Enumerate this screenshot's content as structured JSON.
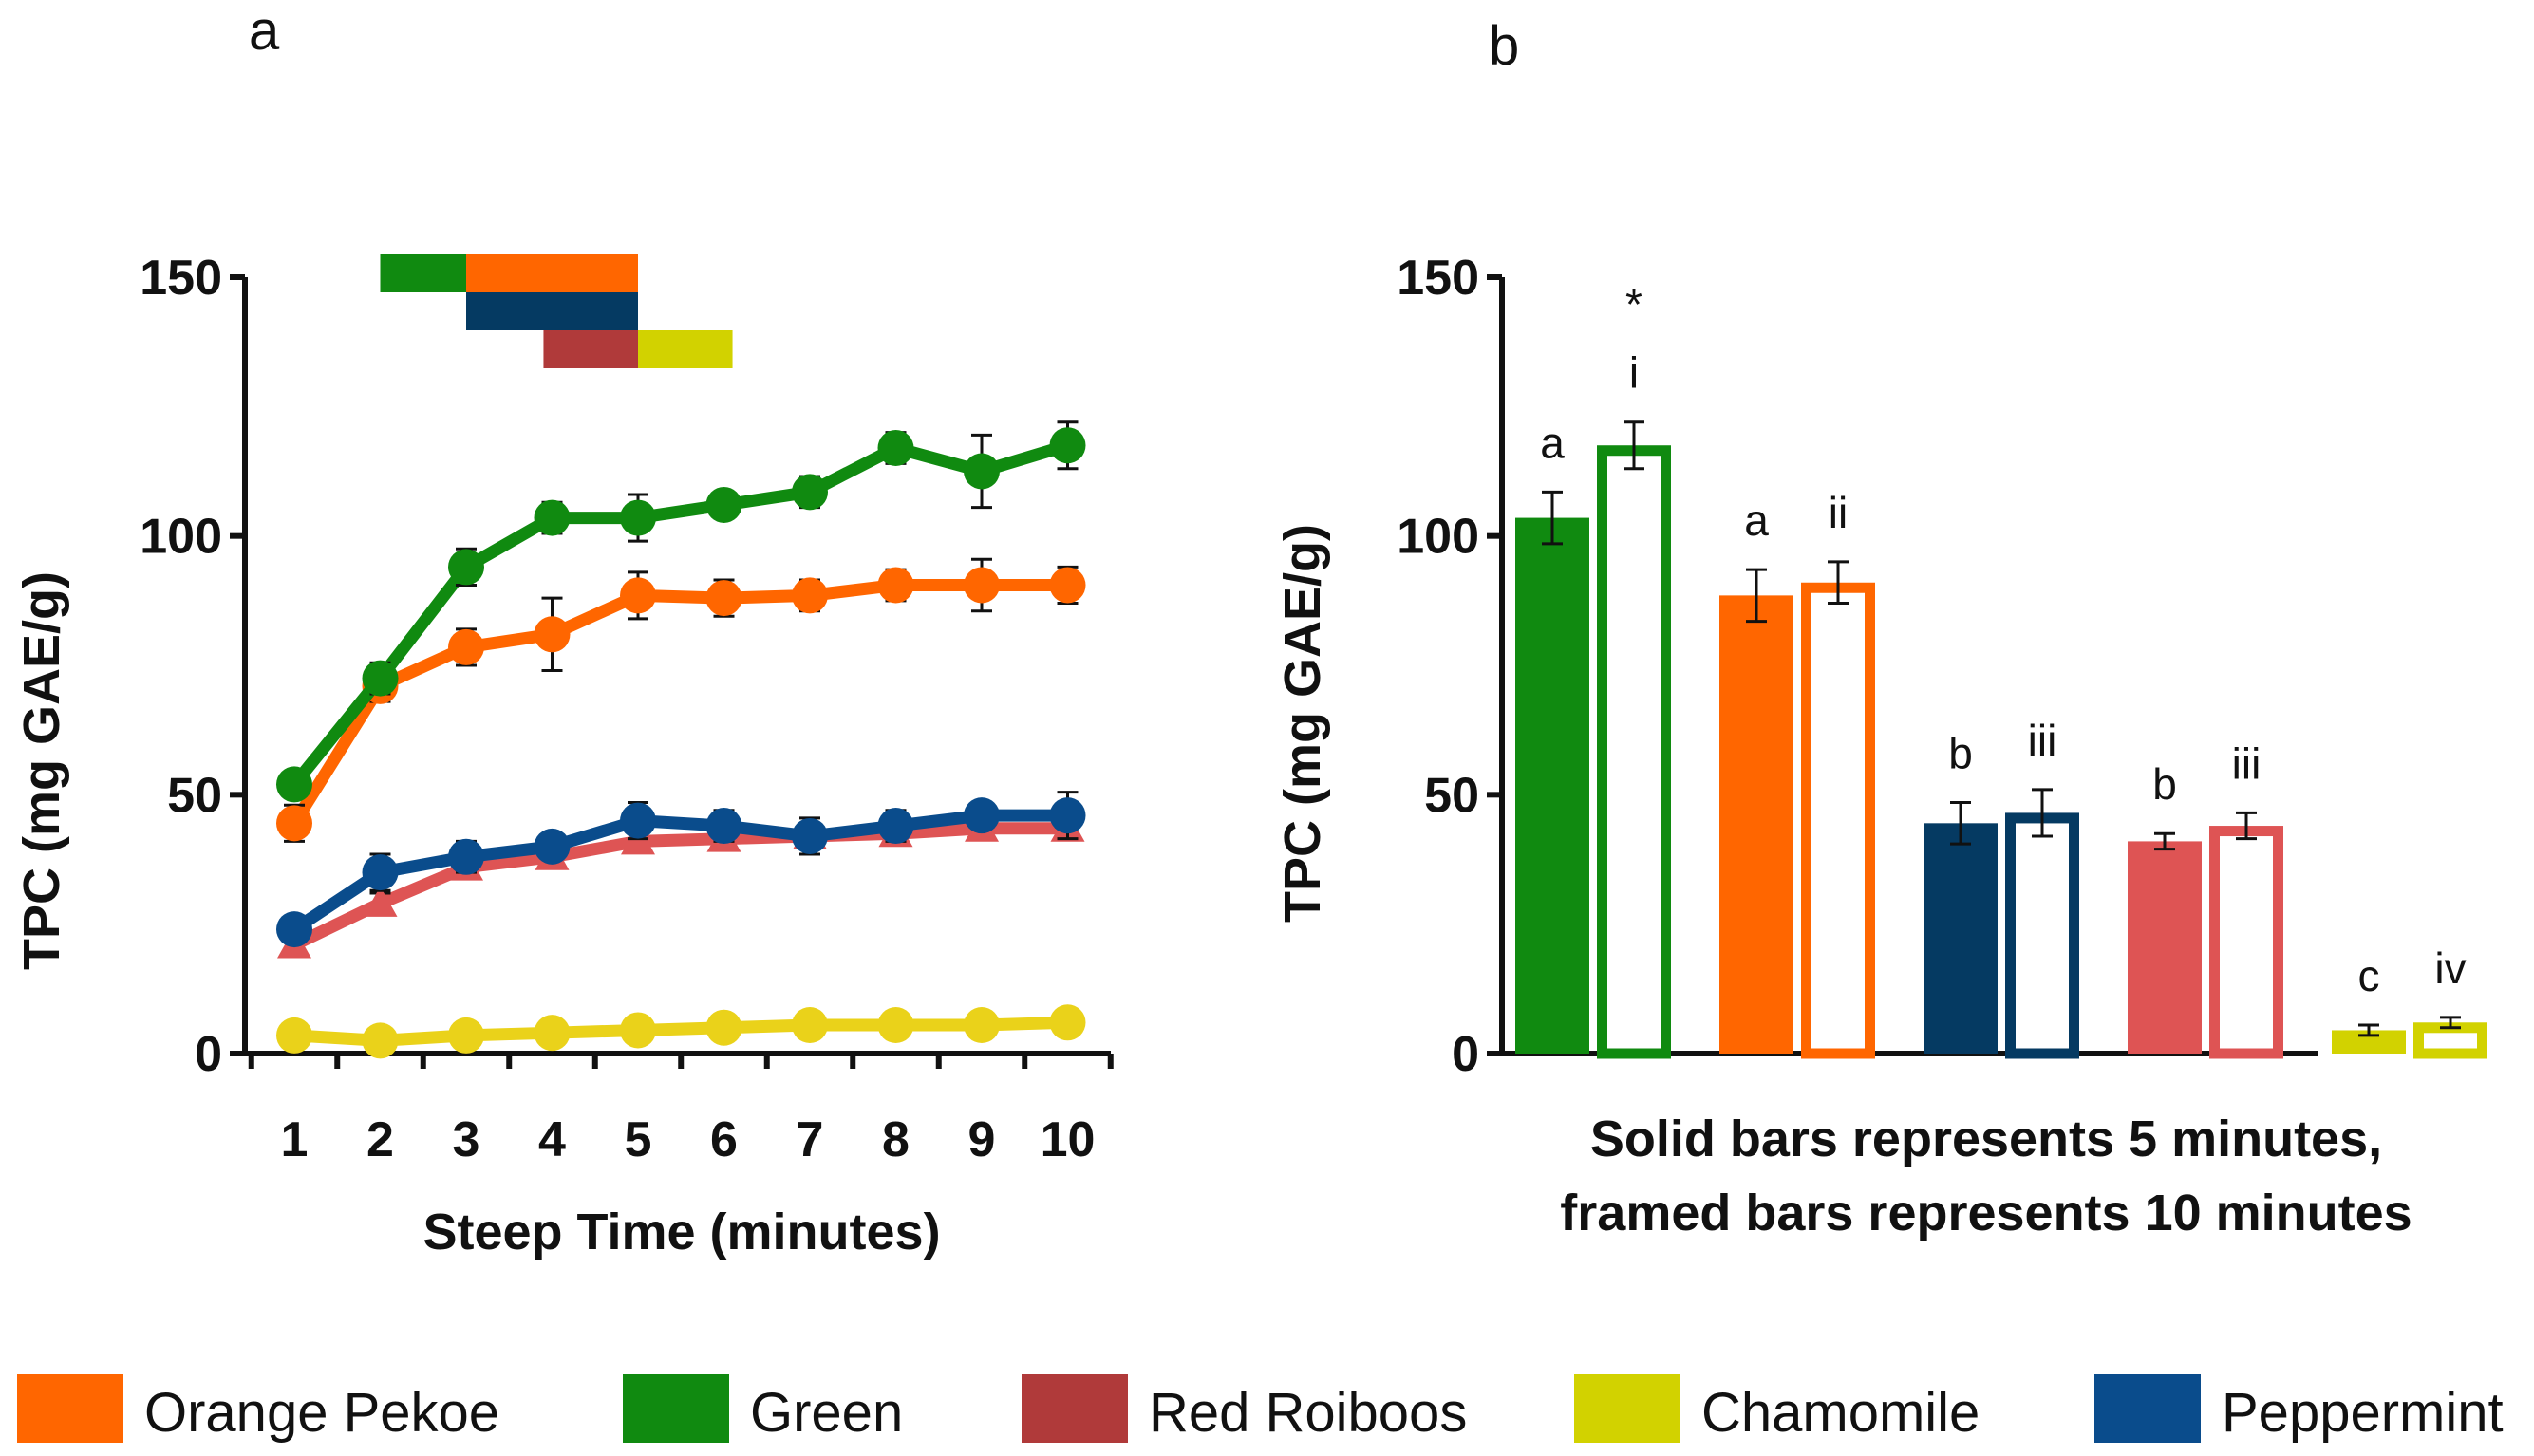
{
  "colors": {
    "orange_pekoe": "#FF6600",
    "green": "#108A10",
    "red_roiboos": "#B03A3A",
    "chamomile": "#D2D200",
    "peppermint": "#0A4C8C",
    "peppermint_dark": "#053A62",
    "red_roiboos_light": "#DE5454",
    "chamomile_line": "#EAD21A"
  },
  "chart_data": [
    {
      "type": "line",
      "panel_label": "a",
      "title": "",
      "xlabel": "Steep Time (minutes)",
      "ylabel": "TPC (mg GAE/g)",
      "x": [
        1,
        2,
        3,
        4,
        5,
        6,
        7,
        8,
        9,
        10
      ],
      "x_ticks": [
        "1",
        "2",
        "3",
        "4",
        "5",
        "6",
        "7",
        "8",
        "9",
        "10"
      ],
      "ylim": [
        0,
        150
      ],
      "y_ticks": [
        "0",
        "50",
        "100",
        "150"
      ],
      "series": [
        {
          "name": "Red Roiboos",
          "marker": "triangle",
          "values": [
            21,
            29,
            36,
            38,
            41,
            41.5,
            42,
            42.5,
            43.5,
            43.5
          ],
          "errors": [
            1.5,
            2,
            1.5,
            2,
            2,
            1.5,
            2,
            2,
            1.5,
            2
          ]
        },
        {
          "name": "Chamomile",
          "marker": "circle",
          "values": [
            3.5,
            2.5,
            3.5,
            4,
            4.5,
            5,
            5.5,
            5.5,
            5.5,
            6
          ],
          "errors": [
            0.5,
            0.5,
            0.5,
            0.5,
            0.5,
            0.5,
            0.5,
            0.5,
            0.5,
            0.5
          ]
        },
        {
          "name": "Peppermint",
          "marker": "circle",
          "values": [
            24,
            35,
            38,
            40,
            45,
            44,
            42,
            44,
            46,
            46
          ],
          "errors": [
            2.5,
            3.5,
            3,
            2.5,
            3.5,
            3,
            3.5,
            3,
            2,
            4.5
          ]
        },
        {
          "name": "Orange Pekoe",
          "marker": "circle",
          "values": [
            44.5,
            71,
            78.5,
            81,
            88.5,
            88,
            88.5,
            90.5,
            90.5,
            90.5
          ],
          "errors": [
            3.5,
            3,
            3.5,
            7,
            4.5,
            3.5,
            3,
            3,
            5,
            3.5
          ]
        },
        {
          "name": "Green",
          "marker": "circle",
          "values": [
            52,
            72.5,
            94,
            103.5,
            103.5,
            106,
            108.5,
            117,
            112.5,
            117.5
          ],
          "errors": [
            1.5,
            3,
            3.5,
            3,
            4.5,
            2.5,
            3,
            3,
            7,
            4.5
          ]
        }
      ],
      "significance_bars": [
        {
          "segments": [
            {
              "series": "Green",
              "from": 2.0,
              "to": 3.0
            },
            {
              "series": "Orange Pekoe",
              "from": 3.0,
              "to": 5.0
            }
          ]
        },
        {
          "segments": [
            {
              "series": "Peppermint",
              "from": 3.0,
              "to": 5.0
            }
          ]
        },
        {
          "segments": [
            {
              "series": "Red Roiboos",
              "from": 3.9,
              "to": 5.0
            },
            {
              "series": "Chamomile",
              "from": 5.0,
              "to": 6.1
            }
          ]
        }
      ]
    },
    {
      "type": "bar",
      "panel_label": "b",
      "title": "",
      "xlabel": "Solid bars represents 5 minutes,\nframed bars represents 10 minutes",
      "xlabel_lines": [
        "Solid bars represents 5 minutes,",
        "framed bars represents 10 minutes"
      ],
      "ylabel": "TPC (mg GAE/g)",
      "ylim": [
        0,
        150
      ],
      "y_ticks": [
        "0",
        "50",
        "100",
        "150"
      ],
      "categories": [
        "Green",
        "Orange Pekoe",
        "Peppermint",
        "Red Roiboos",
        "Chamomile"
      ],
      "series": [
        {
          "name": "5 minutes (solid)",
          "values": [
            103.5,
            88.5,
            44.5,
            41,
            4.5
          ],
          "errors": [
            5,
            5,
            4,
            1.5,
            1
          ],
          "labels": [
            "a",
            "a",
            "b",
            "b",
            "c"
          ]
        },
        {
          "name": "10 minutes (framed)",
          "values": [
            117.5,
            91,
            46.5,
            44,
            6
          ],
          "errors": [
            4.5,
            4,
            4.5,
            2.5,
            1
          ],
          "labels": [
            "i",
            "ii",
            "iii",
            "iii",
            "iv"
          ]
        }
      ],
      "annotations": [
        {
          "category": "Green",
          "series": "10 minutes (framed)",
          "text": "*"
        }
      ]
    }
  ],
  "legend": {
    "items": [
      {
        "label": "Orange Pekoe",
        "color": "#FF6600"
      },
      {
        "label": "Green",
        "color": "#108A10"
      },
      {
        "label": "Red Roiboos",
        "color": "#B03A3A"
      },
      {
        "label": "Chamomile",
        "color": "#D2D200"
      },
      {
        "label": "Peppermint",
        "color": "#0A4C8C"
      }
    ]
  }
}
